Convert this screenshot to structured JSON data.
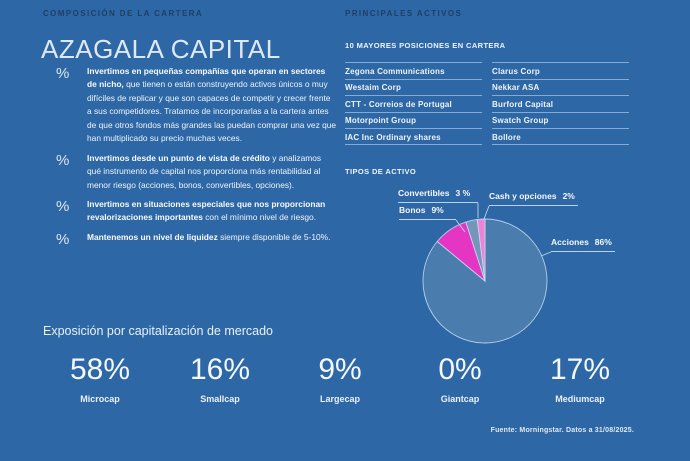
{
  "theme": {
    "background": "#2e67a6",
    "kicker_color": "#1d4066",
    "text_color": "#eef4fa",
    "line_color": "#b9d4ea"
  },
  "left": {
    "kicker": "COMPOSICIÓN DE LA CARTERA",
    "title": "AZAGALA CAPITAL",
    "bullet_icon": "%",
    "bullets": [
      {
        "bold": "Invertimos en pequeñas compañías que operan en sectores de nicho,",
        "rest": " que tienen o están construyendo activos únicos o muy difíciles de replicar y que son capaces de competir y crecer frente a sus competidores. Tratamos de incorporarlas a la cartera antes de que otros fondos más grandes las puedan comprar una vez que han multiplicado su precio muchas veces."
      },
      {
        "bold": "Invertimos desde un punto de vista de crédito",
        "rest": " y analizamos qué instrumento de capital nos proporciona más rentabilidad al menor riesgo (acciones, bonos, convertibles, opciones)."
      },
      {
        "bold": "Invertimos en situaciones especiales que nos proporcionan revalorizaciones importantes",
        "rest": " con el mínimo nivel de riesgo."
      },
      {
        "bold": "Mantenemos un nivel de liquidez",
        "rest": " siempre disponible de 5-10%."
      }
    ]
  },
  "right": {
    "kicker": "PRINCIPALES ACTIVOS",
    "holdings_title": "10 MAYORES POSICIONES EN CARTERA",
    "holdings_col1": [
      "Zegona Communications",
      "Westaim Corp",
      "CTT - Correios de Portugal",
      "Motorpoint Group",
      "IAC Inc Ordinary shares"
    ],
    "holdings_col2": [
      "Clarus Corp",
      "Nekkar ASA",
      "Burford Capital",
      "Swatch Group",
      "Bollore"
    ],
    "asset_types_title": "TIPOS DE ACTIVO"
  },
  "chart_data": {
    "type": "pie",
    "title": "TIPOS DE ACTIVO",
    "start_angle_deg": 0,
    "direction": "clockwise",
    "legend_position": "callout-labels",
    "slices": [
      {
        "name": "Acciones",
        "value": 86,
        "pct": "86%",
        "color": "#4a7cae"
      },
      {
        "name": "Bonos",
        "value": 9,
        "pct": "9%",
        "color": "#e436c3"
      },
      {
        "name": "Convertibles",
        "value": 3,
        "pct": "3 %",
        "color": "#7596ba"
      },
      {
        "name": "Cash y opciones",
        "value": 2,
        "pct": "2%",
        "color": "#ef82d6"
      }
    ]
  },
  "exposure": {
    "title": "Exposición por capitalización de mercado",
    "items": [
      {
        "value": "58%",
        "label": "Microcap"
      },
      {
        "value": "16%",
        "label": "Smallcap"
      },
      {
        "value": "9%",
        "label": "Largecap"
      },
      {
        "value": "0%",
        "label": "Giantcap"
      },
      {
        "value": "17%",
        "label": "Mediumcap"
      }
    ]
  },
  "footer": {
    "source": "Fuente: Morningstar. Datos a 31/08/2025."
  }
}
